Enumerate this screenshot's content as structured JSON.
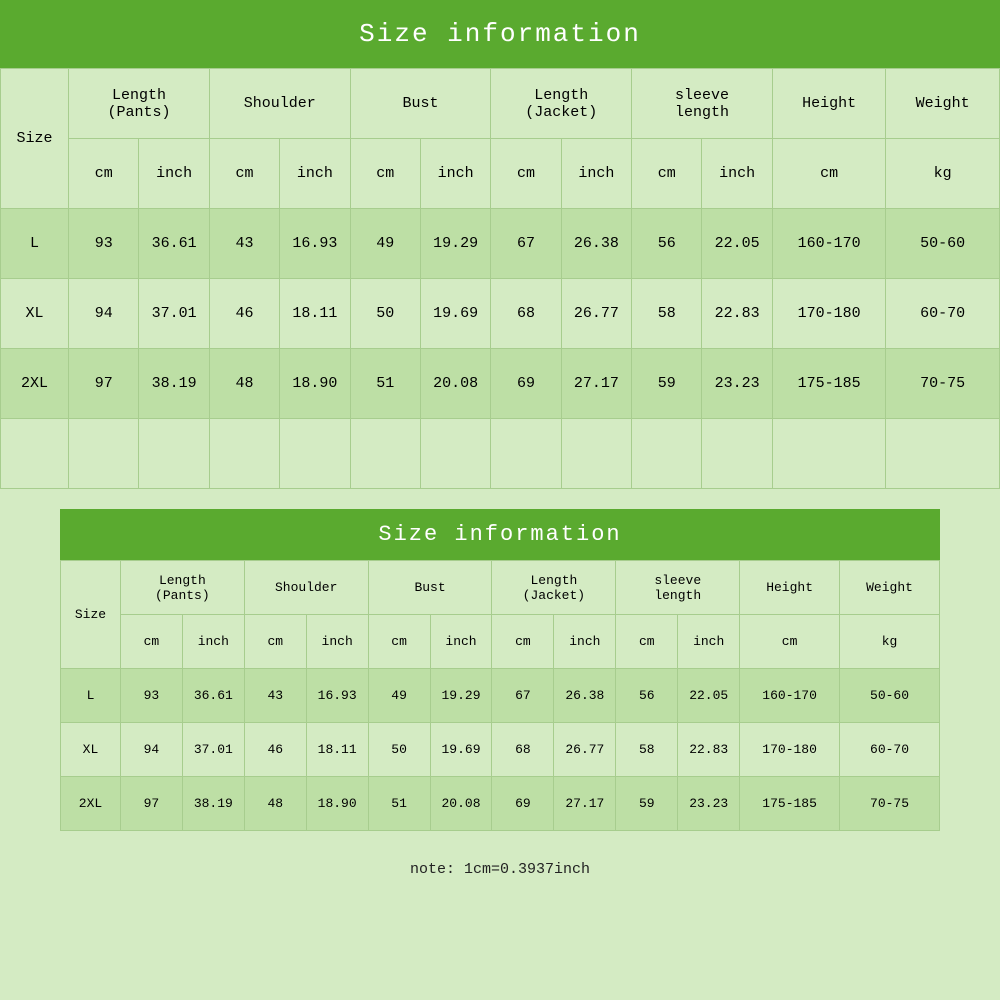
{
  "chart": {
    "type": "table",
    "title": "Size information",
    "background_color": "#d4ebc3",
    "alt_row_color": "#bddfa5",
    "header_bg": "#5aaa2f",
    "header_color": "#ffffff",
    "border_color": "#a7cd8e",
    "font_family": "Courier New",
    "columns": [
      {
        "label": "Size",
        "sub": null
      },
      {
        "label": "Length\n(Pants)",
        "sub": [
          "cm",
          "inch"
        ]
      },
      {
        "label": "Shoulder",
        "sub": [
          "cm",
          "inch"
        ]
      },
      {
        "label": "Bust",
        "sub": [
          "cm",
          "inch"
        ]
      },
      {
        "label": "Length\n(Jacket)",
        "sub": [
          "cm",
          "inch"
        ]
      },
      {
        "label": "sleeve\nlength",
        "sub": [
          "cm",
          "inch"
        ]
      },
      {
        "label": "Height",
        "sub": [
          "cm"
        ]
      },
      {
        "label": "Weight",
        "sub": [
          "kg"
        ]
      }
    ],
    "header_labels": {
      "size": "Size",
      "length_pants": "Length\n(Pants)",
      "shoulder": "Shoulder",
      "bust": "Bust",
      "length_jacket": "Length\n(Jacket)",
      "sleeve": "sleeve\nlength",
      "height": "Height",
      "weight": "Weight"
    },
    "units": {
      "cm": "cm",
      "inch": "inch",
      "kg": "kg"
    },
    "rows": [
      {
        "size": "L",
        "lp_cm": "93",
        "lp_in": "36.61",
        "sh_cm": "43",
        "sh_in": "16.93",
        "bu_cm": "49",
        "bu_in": "19.29",
        "lj_cm": "67",
        "lj_in": "26.38",
        "sl_cm": "56",
        "sl_in": "22.05",
        "h": "160-170",
        "w": "50-60"
      },
      {
        "size": "XL",
        "lp_cm": "94",
        "lp_in": "37.01",
        "sh_cm": "46",
        "sh_in": "18.11",
        "bu_cm": "50",
        "bu_in": "19.69",
        "lj_cm": "68",
        "lj_in": "26.77",
        "sl_cm": "58",
        "sl_in": "22.83",
        "h": "170-180",
        "w": "60-70"
      },
      {
        "size": "2XL",
        "lp_cm": "97",
        "lp_in": "38.19",
        "sh_cm": "48",
        "sh_in": "18.90",
        "bu_cm": "51",
        "bu_in": "20.08",
        "lj_cm": "69",
        "lj_in": "27.17",
        "sl_cm": "59",
        "sl_in": "23.23",
        "h": "175-185",
        "w": "70-75"
      }
    ],
    "note": "note: 1cm=0.3937inch"
  }
}
